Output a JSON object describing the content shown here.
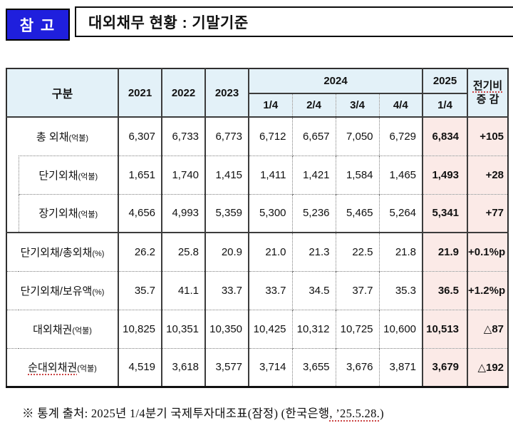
{
  "badge": {
    "label": "참 고"
  },
  "title": "대외채무 현황 : 기말기준",
  "colors": {
    "badge_blue": "#1f1fdd",
    "header_bg": "#e3f1f8",
    "highlight_bg": "#fbeae7",
    "spellcheck_red": "#cc4444"
  },
  "table": {
    "header": {
      "gubun": "구분",
      "years": [
        "2021",
        "2022",
        "2023"
      ],
      "group_2024": {
        "label": "2024",
        "quarters": [
          "1/4",
          "2/4",
          "3/4",
          "4/4"
        ]
      },
      "group_2025": {
        "label": "2025",
        "quarter": "1/4"
      },
      "change": {
        "line1": "전기비",
        "line2": "증 감"
      }
    },
    "rows": [
      {
        "label": "총 외채",
        "unit": "(억불)",
        "indent": false,
        "red": false,
        "values": [
          "6,307",
          "6,733",
          "6,773",
          "6,712",
          "6,657",
          "7,050",
          "6,729"
        ],
        "y2025": "6,834",
        "change": "+105"
      },
      {
        "label": "단기외채",
        "unit": "(억불)",
        "indent": true,
        "red": false,
        "values": [
          "1,651",
          "1,740",
          "1,415",
          "1,411",
          "1,421",
          "1,584",
          "1,465"
        ],
        "y2025": "1,493",
        "change": "+28"
      },
      {
        "label": "장기외채",
        "unit": "(억불)",
        "indent": true,
        "red": false,
        "values": [
          "4,656",
          "4,993",
          "5,359",
          "5,300",
          "5,236",
          "5,465",
          "5,264"
        ],
        "y2025": "5,341",
        "change": "+77"
      },
      {
        "label": "단기외채/총외채",
        "unit": "(%)",
        "indent": false,
        "red": false,
        "values": [
          "26.2",
          "25.8",
          "20.9",
          "21.0",
          "21.3",
          "22.5",
          "21.8"
        ],
        "y2025": "21.9",
        "change": "+0.1%p"
      },
      {
        "label": "단기외채/보유액",
        "unit": "(%)",
        "indent": false,
        "red": false,
        "values": [
          "35.7",
          "41.1",
          "33.7",
          "33.7",
          "34.5",
          "37.7",
          "35.3"
        ],
        "y2025": "36.5",
        "change": "+1.2%p"
      },
      {
        "label": "대외채권",
        "unit": "(억불)",
        "indent": false,
        "red": false,
        "values": [
          "10,825",
          "10,351",
          "10,350",
          "10,425",
          "10,312",
          "10,725",
          "10,600"
        ],
        "y2025": "10,513",
        "change": "△87"
      },
      {
        "label": "순대외채권",
        "unit": "(억불)",
        "indent": false,
        "red": true,
        "values": [
          "4,519",
          "3,618",
          "3,577",
          "3,714",
          "3,655",
          "3,676",
          "3,871"
        ],
        "y2025": "3,679",
        "change": "△192"
      }
    ]
  },
  "footnote": {
    "part1": "※  통계 출처: 2025년 1/4분기 국제투자대조표(잠정) (한국은행",
    "part2": ", ’25.5.28.",
    "part3": ")"
  }
}
